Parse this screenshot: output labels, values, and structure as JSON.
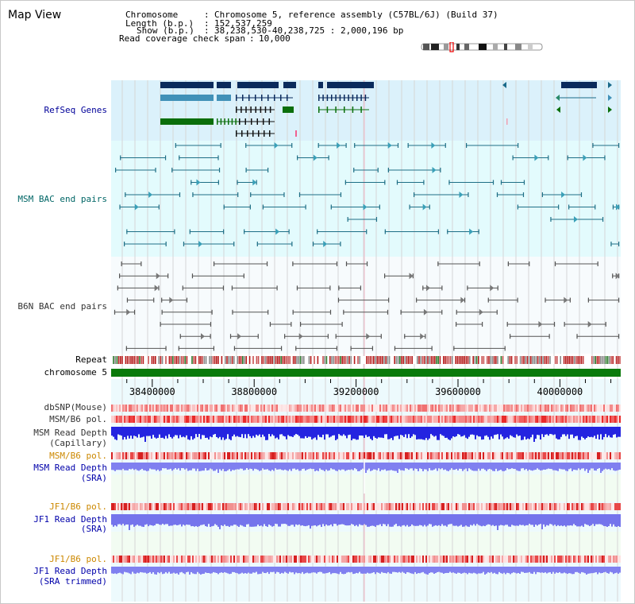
{
  "title": "Map View",
  "info": {
    "chromosome_key": "Chromosome",
    "chromosome_val": "Chromosome 5, reference assembly (C57BL/6J) (Build 37)",
    "length_key": "Length (b.p.)",
    "length_val": "152,537,259",
    "show_key": "Show (b.p.)",
    "show_val": "38,238,530-40,238,725 : 2,000,196 bp",
    "coverage_key": "Read coverage check span",
    "coverage_val": "10,000"
  },
  "tracks": {
    "refseq": "RefSeq Genes",
    "msm_bac": "MSM BAC end pairs",
    "b6n_bac": "B6N BAC end pairs",
    "repeat": "Repeat",
    "chromosome": "chromosome 5",
    "dbsnp": "dbSNP(Mouse)",
    "msm_pol": "MSM/B6 pol.",
    "msm_depth_cap_1": "MSM Read Depth",
    "msm_depth_cap_2": "(Capillary)",
    "msm_pol_2": "MSM/B6 pol.",
    "msm_depth_sra_1": "MSM Read Depth",
    "msm_depth_sra_2": "(SRA)",
    "jf1_pol": "JF1/B6 pol.",
    "jf1_depth_sra_1": "JF1 Read Depth",
    "jf1_depth_sra_2": "(SRA)",
    "jf1_pol_2": "JF1/B6 pol.",
    "jf1_depth_trim_1": "JF1 Read Depth",
    "jf1_depth_trim_2": "(SRA trimmed)"
  },
  "axis": {
    "ticks": [
      "38400000",
      "38800000",
      "39200000",
      "39600000",
      "40000000"
    ],
    "tick_values": [
      38400000,
      38800000,
      39200000,
      39600000,
      40000000
    ],
    "range": [
      38238530,
      40238725
    ]
  },
  "colors": {
    "refseq_label": "#000099",
    "msm_label": "#006666",
    "b6n_label": "#333333",
    "pol_label_orange": "#cc8800",
    "sra_label": "#0000aa",
    "refseq_bg": "#dbf1fb",
    "bac_bg": "#e3fbfd",
    "chromosome_bar": "#0b7a0b"
  }
}
